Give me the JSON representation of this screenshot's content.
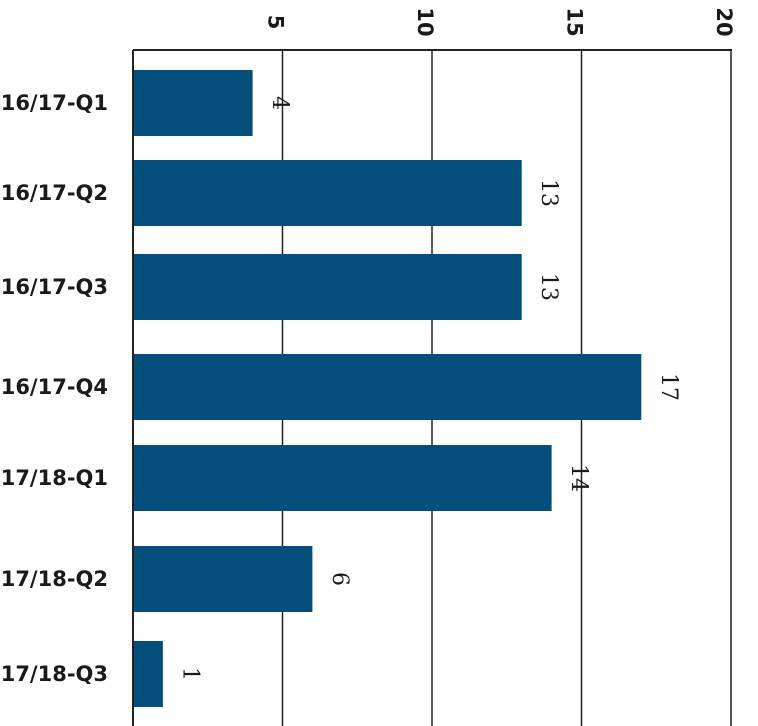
{
  "chart_data": {
    "type": "bar",
    "orientation": "horizontal",
    "categories": [
      "16/17-Q1",
      "16/17-Q2",
      "16/17-Q3",
      "16/17-Q4",
      "17/18-Q1",
      "17/18-Q2",
      "17/18-Q3"
    ],
    "values": [
      4,
      13,
      13,
      17,
      14,
      6,
      1
    ],
    "data_labels": [
      "4",
      "13",
      "13",
      "17",
      "14",
      "6",
      "1"
    ],
    "xlim": [
      0,
      20
    ],
    "xticks": [
      5,
      10,
      15,
      20
    ],
    "xtick_labels": [
      "5",
      "10",
      "15",
      "20"
    ],
    "grid": true,
    "bar_color": "#044e7c",
    "title": "",
    "xlabel": "",
    "ylabel": ""
  }
}
